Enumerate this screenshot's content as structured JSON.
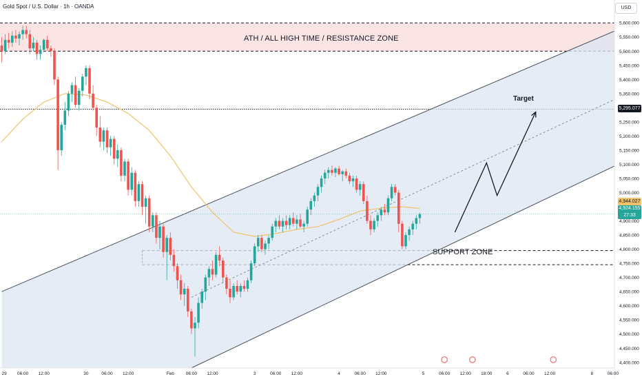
{
  "header": {
    "symbol_title": "Gold Spot / U.S. Dollar · 1h · OANDA",
    "currency": "USD"
  },
  "colors": {
    "up": "#26a69a",
    "down": "#ef5350",
    "ma": "#f2c26b",
    "channel_fill": "#dce6f2",
    "resistance_fill": "#fbe4e4"
  },
  "annotations": {
    "resistance_label": "ATH / ALL HIGH TIME / RESISTANCE ZONE",
    "support_label": "SUPPORT ZONE",
    "target_label": "Target"
  },
  "price_tags": {
    "target": "5,295.077",
    "ma": "4,944.027",
    "last": "4,924.155",
    "countdown": "27:33"
  },
  "chart_data": {
    "type": "candlestick",
    "title": "Gold Spot / U.S. Dollar · 1h · OANDA",
    "ylim": [
      4380,
      5620
    ],
    "y_ticks": [
      "4,400.000",
      "4,450.000",
      "4,500.000",
      "4,550.000",
      "4,600.000",
      "4,650.000",
      "4,700.000",
      "4,750.000",
      "4,800.000",
      "4,850.000",
      "4,900.000",
      "4,950.000",
      "5,000.000",
      "5,050.000",
      "5,100.000",
      "5,150.000",
      "5,200.000",
      "5,250.000",
      "5,300.000",
      "5,350.000",
      "5,400.000",
      "5,450.000",
      "5,500.000",
      "5,550.000",
      "5,600.000"
    ],
    "y_tick_values": [
      4400,
      4450,
      4500,
      4550,
      4600,
      4650,
      4700,
      4750,
      4800,
      4850,
      4900,
      4950,
      5000,
      5050,
      5100,
      5150,
      5200,
      5250,
      5300,
      5350,
      5400,
      5450,
      5500,
      5550,
      5600
    ],
    "x_ticks": [
      "29",
      "06:00",
      "12:00",
      "30",
      "06:00",
      "12:00",
      "Feb",
      "06:00",
      "12:00",
      "3",
      "06:00",
      "12:00",
      "4",
      "06:00",
      "12:00",
      "5",
      "06:00",
      "12:00",
      "18:00",
      "6",
      "06:00",
      "12:00",
      "8",
      "06:00"
    ],
    "x_tick_index": [
      0,
      6,
      12,
      24,
      30,
      36,
      48,
      54,
      60,
      72,
      78,
      84,
      96,
      102,
      108,
      120,
      126,
      132,
      138,
      144,
      150,
      156,
      168,
      174
    ],
    "resistance_zone": [
      5500,
      5600
    ],
    "support_zone": [
      4745,
      4795
    ],
    "target_level": 5295.077,
    "ma_last": 4944.027,
    "last_price": 4924.155,
    "channel": {
      "upper": [
        [
          0,
          4650
        ],
        [
          178,
          5590
        ]
      ],
      "lower": [
        [
          54,
          4380
        ],
        [
          178,
          5115
        ]
      ],
      "mid": [
        [
          54,
          4630
        ],
        [
          178,
          5350
        ]
      ]
    },
    "projection": [
      [
        129,
        4860
      ],
      [
        138,
        5105
      ],
      [
        141,
        4990
      ],
      [
        152,
        5285
      ]
    ],
    "candles": [
      [
        5520,
        5550,
        5460,
        5500
      ],
      [
        5500,
        5560,
        5490,
        5540
      ],
      [
        5540,
        5565,
        5510,
        5530
      ],
      [
        5530,
        5570,
        5515,
        5555
      ],
      [
        5555,
        5575,
        5530,
        5545
      ],
      [
        5545,
        5570,
        5520,
        5560
      ],
      [
        5560,
        5590,
        5540,
        5575
      ],
      [
        5575,
        5590,
        5545,
        5560
      ],
      [
        5560,
        5575,
        5490,
        5510
      ],
      [
        5510,
        5550,
        5500,
        5530
      ],
      [
        5530,
        5540,
        5470,
        5490
      ],
      [
        5490,
        5520,
        5470,
        5505
      ],
      [
        5505,
        5545,
        5495,
        5540
      ],
      [
        5540,
        5555,
        5500,
        5510
      ],
      [
        5510,
        5520,
        5480,
        5500
      ],
      [
        5500,
        5510,
        5380,
        5400
      ],
      [
        5400,
        5410,
        5080,
        5150
      ],
      [
        5150,
        5250,
        5130,
        5240
      ],
      [
        5240,
        5320,
        5220,
        5290
      ],
      [
        5290,
        5360,
        5270,
        5350
      ],
      [
        5350,
        5390,
        5320,
        5380
      ],
      [
        5380,
        5410,
        5300,
        5310
      ],
      [
        5310,
        5370,
        5290,
        5360
      ],
      [
        5360,
        5420,
        5340,
        5410
      ],
      [
        5410,
        5450,
        5380,
        5440
      ],
      [
        5440,
        5450,
        5330,
        5350
      ],
      [
        5350,
        5380,
        5290,
        5300
      ],
      [
        5300,
        5310,
        5200,
        5230
      ],
      [
        5230,
        5270,
        5160,
        5180
      ],
      [
        5180,
        5230,
        5150,
        5220
      ],
      [
        5220,
        5230,
        5140,
        5160
      ],
      [
        5160,
        5200,
        5130,
        5190
      ],
      [
        5190,
        5200,
        5100,
        5120
      ],
      [
        5120,
        5170,
        5090,
        5150
      ],
      [
        5150,
        5160,
        5040,
        5060
      ],
      [
        5060,
        5120,
        5040,
        5110
      ],
      [
        5110,
        5120,
        4990,
        5010
      ],
      [
        5010,
        5090,
        4990,
        5070
      ],
      [
        5070,
        5080,
        4950,
        4970
      ],
      [
        4970,
        5040,
        4950,
        5030
      ],
      [
        5030,
        5040,
        4920,
        4950
      ],
      [
        4950,
        4990,
        4890,
        4980
      ],
      [
        4980,
        4990,
        4860,
        4880
      ],
      [
        4880,
        4930,
        4860,
        4920
      ],
      [
        4920,
        4930,
        4820,
        4840
      ],
      [
        4840,
        4900,
        4800,
        4880
      ],
      [
        4880,
        4890,
        4770,
        4790
      ],
      [
        4790,
        4850,
        4690,
        4840
      ],
      [
        4840,
        4860,
        4760,
        4780
      ],
      [
        4780,
        4800,
        4720,
        4740
      ],
      [
        4740,
        4750,
        4660,
        4690
      ],
      [
        4690,
        4710,
        4620,
        4640
      ],
      [
        4640,
        4680,
        4600,
        4660
      ],
      [
        4660,
        4670,
        4560,
        4580
      ],
      [
        4580,
        4590,
        4500,
        4520
      ],
      [
        4520,
        4560,
        4420,
        4540
      ],
      [
        4540,
        4630,
        4520,
        4610
      ],
      [
        4610,
        4660,
        4590,
        4650
      ],
      [
        4650,
        4710,
        4620,
        4700
      ],
      [
        4700,
        4740,
        4670,
        4730
      ],
      [
        4730,
        4760,
        4690,
        4710
      ],
      [
        4710,
        4790,
        4700,
        4780
      ],
      [
        4780,
        4810,
        4740,
        4760
      ],
      [
        4760,
        4770,
        4680,
        4700
      ],
      [
        4700,
        4710,
        4640,
        4660
      ],
      [
        4660,
        4690,
        4610,
        4630
      ],
      [
        4630,
        4680,
        4620,
        4670
      ],
      [
        4670,
        4690,
        4640,
        4650
      ],
      [
        4650,
        4680,
        4630,
        4670
      ],
      [
        4670,
        4690,
        4650,
        4660
      ],
      [
        4660,
        4700,
        4650,
        4690
      ],
      [
        4690,
        4760,
        4680,
        4750
      ],
      [
        4750,
        4820,
        4740,
        4810
      ],
      [
        4810,
        4850,
        4790,
        4840
      ],
      [
        4840,
        4850,
        4790,
        4800
      ],
      [
        4800,
        4830,
        4780,
        4820
      ],
      [
        4820,
        4850,
        4800,
        4840
      ],
      [
        4840,
        4890,
        4830,
        4880
      ],
      [
        4880,
        4910,
        4860,
        4900
      ],
      [
        4900,
        4920,
        4870,
        4880
      ],
      [
        4880,
        4910,
        4860,
        4900
      ],
      [
        4900,
        4920,
        4870,
        4885
      ],
      [
        4885,
        4920,
        4870,
        4910
      ],
      [
        4910,
        4930,
        4880,
        4890
      ],
      [
        4890,
        4920,
        4870,
        4905
      ],
      [
        4905,
        4925,
        4875,
        4880
      ],
      [
        4880,
        4900,
        4860,
        4890
      ],
      [
        4890,
        4950,
        4880,
        4940
      ],
      [
        4940,
        4980,
        4920,
        4970
      ],
      [
        4970,
        5000,
        4950,
        4990
      ],
      [
        4990,
        5030,
        4970,
        5020
      ],
      [
        5020,
        5060,
        5000,
        5050
      ],
      [
        5050,
        5080,
        5030,
        5070
      ],
      [
        5070,
        5090,
        5050,
        5080
      ],
      [
        5080,
        5095,
        5060,
        5070
      ],
      [
        5070,
        5090,
        5055,
        5085
      ],
      [
        5085,
        5095,
        5060,
        5065
      ],
      [
        5065,
        5080,
        5040,
        5075
      ],
      [
        5075,
        5085,
        5050,
        5060
      ],
      [
        5060,
        5070,
        5030,
        5040
      ],
      [
        5040,
        5060,
        5020,
        5050
      ],
      [
        5050,
        5060,
        5000,
        5010
      ],
      [
        5010,
        5040,
        4990,
        5030
      ],
      [
        5030,
        5040,
        4960,
        4970
      ],
      [
        4970,
        4990,
        4890,
        4900
      ],
      [
        4900,
        4920,
        4850,
        4870
      ],
      [
        4870,
        4910,
        4860,
        4900
      ],
      [
        4900,
        4930,
        4880,
        4920
      ],
      [
        4920,
        4950,
        4900,
        4940
      ],
      [
        4940,
        4960,
        4920,
        4930
      ],
      [
        4930,
        4990,
        4920,
        4980
      ],
      [
        4980,
        5030,
        4970,
        5020
      ],
      [
        5020,
        5030,
        4990,
        5000
      ],
      [
        5000,
        5010,
        4860,
        4890
      ],
      [
        4890,
        4900,
        4800,
        4810
      ],
      [
        4810,
        4860,
        4800,
        4850
      ],
      [
        4850,
        4880,
        4830,
        4870
      ],
      [
        4870,
        4900,
        4850,
        4890
      ],
      [
        4890,
        4920,
        4870,
        4910
      ],
      [
        4910,
        4930,
        4890,
        4924
      ]
    ],
    "ma": [
      [
        0,
        5180
      ],
      [
        6,
        5260
      ],
      [
        12,
        5320
      ],
      [
        18,
        5350
      ],
      [
        24,
        5345
      ],
      [
        30,
        5320
      ],
      [
        36,
        5280
      ],
      [
        42,
        5220
      ],
      [
        48,
        5130
      ],
      [
        54,
        5020
      ],
      [
        60,
        4930
      ],
      [
        66,
        4860
      ],
      [
        72,
        4845
      ],
      [
        78,
        4855
      ],
      [
        84,
        4870
      ],
      [
        90,
        4880
      ],
      [
        96,
        4905
      ],
      [
        102,
        4935
      ],
      [
        108,
        4945
      ],
      [
        114,
        4950
      ],
      [
        119,
        4944
      ]
    ]
  }
}
